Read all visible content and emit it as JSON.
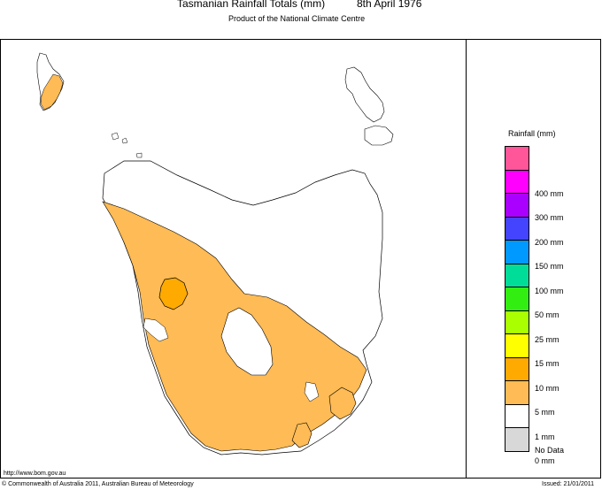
{
  "header": {
    "title": "Tasmanian Rainfall Totals (mm)",
    "date": "8th April 1976",
    "subtitle": "Product of the National Climate Centre"
  },
  "legend": {
    "title": "Rainfall (mm)",
    "swatches": [
      {
        "color": "#ff5599",
        "label": ""
      },
      {
        "color": "#ff00ff",
        "label": "400 mm"
      },
      {
        "color": "#aa00ff",
        "label": "300 mm"
      },
      {
        "color": "#4444ff",
        "label": "200 mm"
      },
      {
        "color": "#0099ff",
        "label": "150 mm"
      },
      {
        "color": "#00dd99",
        "label": "100 mm"
      },
      {
        "color": "#33ee11",
        "label": "50 mm"
      },
      {
        "color": "#aaff00",
        "label": "25 mm"
      },
      {
        "color": "#ffff00",
        "label": "15 mm"
      },
      {
        "color": "#ffaa00",
        "label": "10 mm"
      },
      {
        "color": "#ffbb55",
        "label": "5 mm"
      },
      {
        "color": "#ffffff",
        "label": "1 mm"
      },
      {
        "color": "#d8d8d8",
        "label": "0 mm"
      },
      {
        "color": "",
        "label": "No Data"
      }
    ]
  },
  "footer": {
    "url": "http://www.bom.gov.au",
    "copyright": "© Commonwealth of Australia 2011, Australian Bureau of Meteorology",
    "issued": "Issued: 21/01/2011"
  },
  "map": {
    "region": "Tasmania",
    "rain_colors": {
      "light": "#ffbb55",
      "moderate": "#ffaa00",
      "none": "#ffffff"
    }
  }
}
